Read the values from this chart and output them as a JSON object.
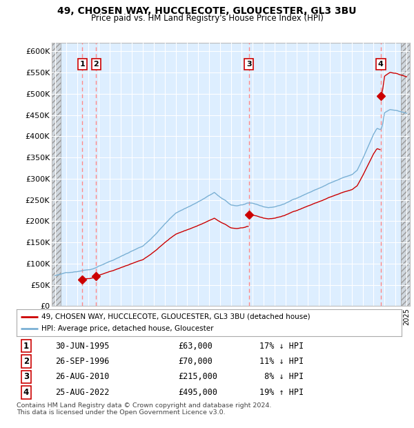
{
  "title": "49, CHOSEN WAY, HUCCLECOTE, GLOUCESTER, GL3 3BU",
  "subtitle": "Price paid vs. HM Land Registry's House Price Index (HPI)",
  "ylim": [
    0,
    620000
  ],
  "yticks": [
    0,
    50000,
    100000,
    150000,
    200000,
    250000,
    300000,
    350000,
    400000,
    450000,
    500000,
    550000,
    600000
  ],
  "xlim_start": 1992.7,
  "xlim_end": 2025.3,
  "sales": [
    {
      "date": 1995.49,
      "price": 63000,
      "label": "1"
    },
    {
      "date": 1996.74,
      "price": 70000,
      "label": "2"
    },
    {
      "date": 2010.65,
      "price": 215000,
      "label": "3"
    },
    {
      "date": 2022.65,
      "price": 495000,
      "label": "4"
    }
  ],
  "sale_table": [
    {
      "num": "1",
      "date": "30-JUN-1995",
      "price": "£63,000",
      "pct": "17% ↓ HPI"
    },
    {
      "num": "2",
      "date": "26-SEP-1996",
      "price": "£70,000",
      "pct": "11% ↓ HPI"
    },
    {
      "num": "3",
      "date": "26-AUG-2010",
      "price": "£215,000",
      "pct": " 8% ↓ HPI"
    },
    {
      "num": "4",
      "date": "25-AUG-2022",
      "price": "£495,000",
      "pct": "19% ↑ HPI"
    }
  ],
  "legend_line1": "49, CHOSEN WAY, HUCCLECOTE, GLOUCESTER, GL3 3BU (detached house)",
  "legend_line2": "HPI: Average price, detached house, Gloucester",
  "footer": "Contains HM Land Registry data © Crown copyright and database right 2024.\nThis data is licensed under the Open Government Licence v3.0.",
  "line_color_red": "#cc0000",
  "line_color_blue": "#7ab0d4",
  "bg_color": "#ddeeff",
  "dashed_color": "#ff8888"
}
